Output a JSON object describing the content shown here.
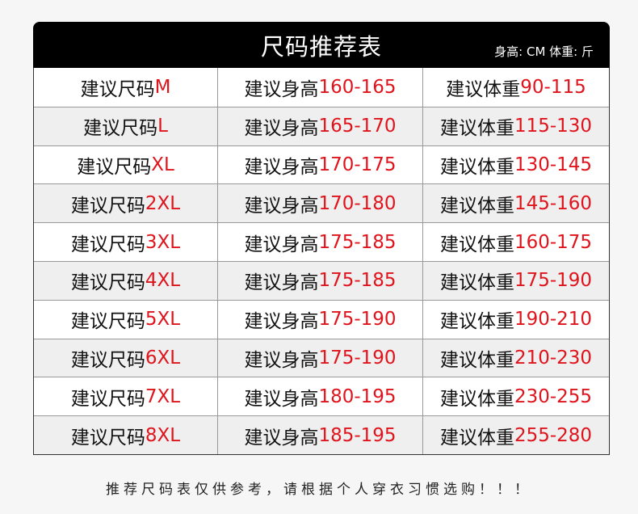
{
  "header": {
    "title": "尺码推荐表",
    "units": "身高: CM  体重: 斤"
  },
  "colors": {
    "accent": "#e0141c",
    "header_bg": "#000000"
  },
  "labels": {
    "size": "建议尺码",
    "height": "建议身高",
    "weight": "建议体重"
  },
  "rows": [
    {
      "size": "M",
      "height": "160-165",
      "weight": "90-115"
    },
    {
      "size": "L",
      "height": "165-170",
      "weight": "115-130"
    },
    {
      "size": "XL",
      "height": "170-175",
      "weight": "130-145"
    },
    {
      "size": "2XL",
      "height": "170-180",
      "weight": "145-160"
    },
    {
      "size": "3XL",
      "height": "175-185",
      "weight": "160-175"
    },
    {
      "size": "4XL",
      "height": "175-185",
      "weight": "175-190"
    },
    {
      "size": "5XL",
      "height": "175-190",
      "weight": "190-210"
    },
    {
      "size": "6XL",
      "height": "175-190",
      "weight": "210-230"
    },
    {
      "size": "7XL",
      "height": "180-195",
      "weight": "230-255"
    },
    {
      "size": "8XL",
      "height": "185-195",
      "weight": "255-280"
    }
  ],
  "footer": "推荐尺码表仅供参考，请根据个人穿衣习惯选购！！！"
}
